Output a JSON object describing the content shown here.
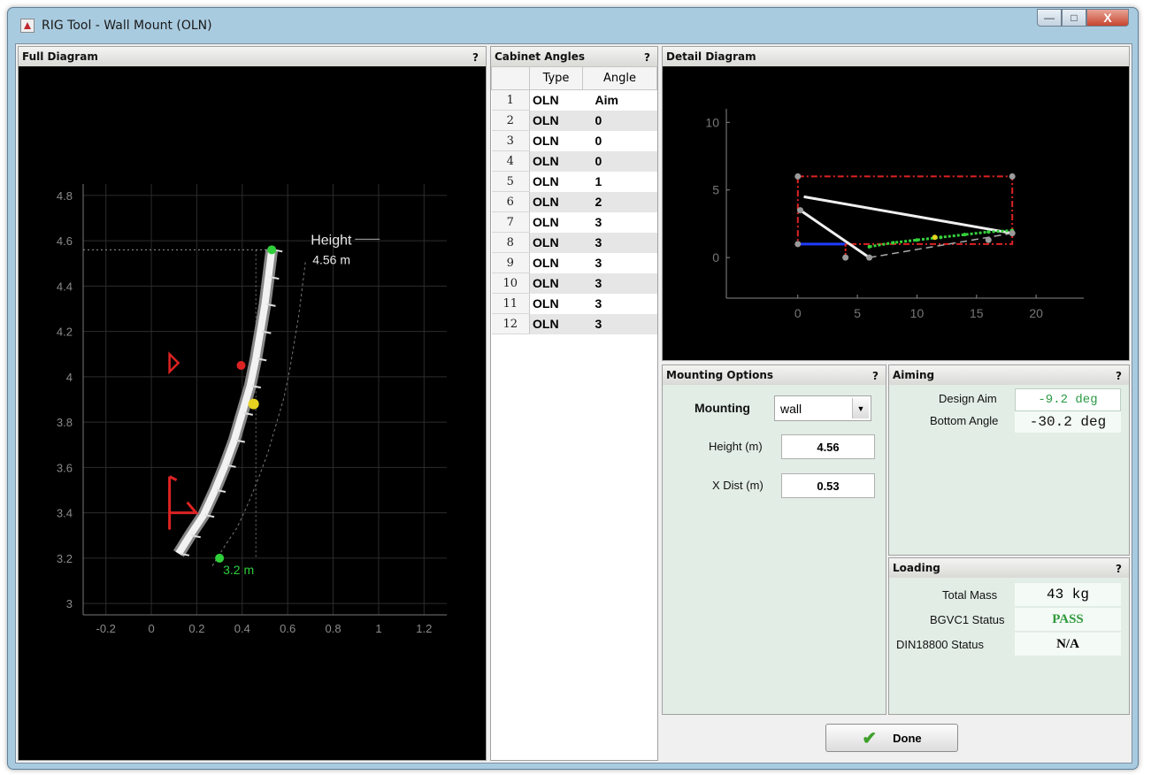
{
  "window": {
    "title": "RIG Tool - Wall Mount (OLN)",
    "minimize_icon": "minimize-icon",
    "maximize_icon": "maximize-icon",
    "close_glyph": "X"
  },
  "help_glyph": "?",
  "full_diagram": {
    "title": "Full Diagram",
    "chart_data": {
      "type": "line",
      "title": "",
      "xlim": [
        -0.3,
        1.3
      ],
      "ylim": [
        2.95,
        4.85
      ],
      "x_ticks": [
        "-0.2",
        "0",
        "0.2",
        "0.4",
        "0.6",
        "0.8",
        "1",
        "1.2"
      ],
      "y_ticks": [
        "3",
        "3.2",
        "3.4",
        "3.6",
        "3.8",
        "4",
        "4.2",
        "4.4",
        "4.6",
        "4.8"
      ],
      "grid": true,
      "array_curve": {
        "x": [
          0.53,
          0.515,
          0.5,
          0.48,
          0.46,
          0.435,
          0.4,
          0.365,
          0.325,
          0.28,
          0.23,
          0.17,
          0.12
        ],
        "y": [
          4.56,
          4.44,
          4.32,
          4.2,
          4.08,
          3.96,
          3.84,
          3.72,
          3.61,
          3.5,
          3.39,
          3.3,
          3.22
        ]
      },
      "top_point": {
        "x": 0.53,
        "y": 4.56
      },
      "bottom_point": {
        "x": 0.3,
        "y": 3.2
      },
      "height_label": "Height",
      "height_value": "4.56 m",
      "distance_label": "3.2 m"
    }
  },
  "cabinet_angles": {
    "title": "Cabinet Angles",
    "headers": [
      "Type",
      "Angle"
    ],
    "rows": [
      {
        "idx": "1",
        "type": "OLN",
        "angle": "Aim"
      },
      {
        "idx": "2",
        "type": "OLN",
        "angle": "0"
      },
      {
        "idx": "3",
        "type": "OLN",
        "angle": "0"
      },
      {
        "idx": "4",
        "type": "OLN",
        "angle": "0"
      },
      {
        "idx": "5",
        "type": "OLN",
        "angle": "1"
      },
      {
        "idx": "6",
        "type": "OLN",
        "angle": "2"
      },
      {
        "idx": "7",
        "type": "OLN",
        "angle": "3"
      },
      {
        "idx": "8",
        "type": "OLN",
        "angle": "3"
      },
      {
        "idx": "9",
        "type": "OLN",
        "angle": "3"
      },
      {
        "idx": "10",
        "type": "OLN",
        "angle": "3"
      },
      {
        "idx": "11",
        "type": "OLN",
        "angle": "3"
      },
      {
        "idx": "12",
        "type": "OLN",
        "angle": "3"
      }
    ]
  },
  "detail_diagram": {
    "title": "Detail Diagram",
    "chart_data": {
      "type": "line",
      "title": "",
      "xlim": [
        -6,
        24
      ],
      "ylim": [
        -3,
        11
      ],
      "x_ticks": [
        "0",
        "5",
        "10",
        "15",
        "20"
      ],
      "y_ticks": [
        "0",
        "5",
        "10"
      ],
      "grid": false,
      "coverage_box": {
        "x": [
          0,
          18
        ],
        "y": [
          1,
          6
        ]
      },
      "mount_line": {
        "x": [
          0,
          4
        ],
        "y": [
          1,
          1
        ]
      },
      "rays": [
        {
          "x": [
            0.5,
            18
          ],
          "y": [
            4.5,
            1.8
          ]
        },
        {
          "x": [
            0.2,
            6
          ],
          "y": [
            3.5,
            0
          ]
        },
        {
          "x": [
            6,
            18
          ],
          "y": [
            0,
            1.8
          ]
        }
      ],
      "coverage_points": {
        "x": [
          6,
          8,
          10,
          12,
          14,
          16,
          18
        ],
        "y": [
          0.8,
          1.1,
          1.3,
          1.5,
          1.7,
          1.9,
          2.0
        ]
      },
      "aim_point": {
        "x": 11.5,
        "y": 1.5
      }
    }
  },
  "mounting": {
    "title": "Mounting Options",
    "mounting_label": "Mounting",
    "mounting_value": "wall",
    "dropdown_icon": "chevron-down-icon",
    "height_label": "Height (m)",
    "height_value": "4.56",
    "xdist_label": "X Dist (m)",
    "xdist_value": "0.53"
  },
  "aiming": {
    "title": "Aiming",
    "design_aim_label": "Design Aim",
    "design_aim_value": "-9.2 deg",
    "bottom_angle_label": "Bottom Angle",
    "bottom_angle_value": "-30.2 deg"
  },
  "loading": {
    "title": "Loading",
    "total_mass_label": "Total Mass",
    "total_mass_value": "43 kg",
    "bgvc1_label": "BGVC1 Status",
    "bgvc1_value": "PASS",
    "din_label": "DIN18800 Status",
    "din_value": "N/A"
  },
  "done_label": "Done",
  "colors": {
    "pass_green": "#2f9a3a",
    "design_aim_green": "#2a9a44",
    "panel_green": "#e2ede5"
  }
}
